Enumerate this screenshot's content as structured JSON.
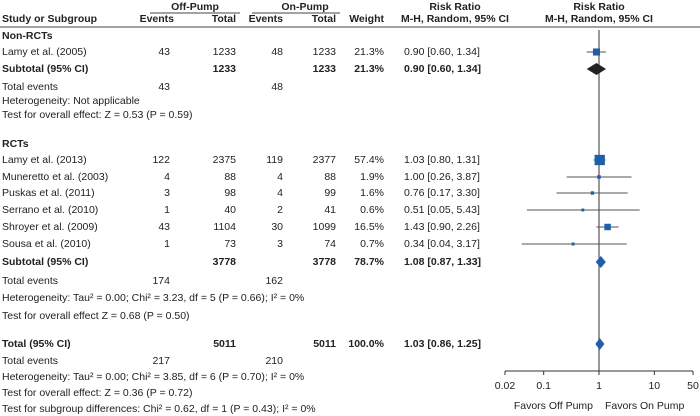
{
  "chart_data": {
    "type": "forest",
    "header": {
      "group1": "Off-Pump",
      "group2": "On-Pump",
      "rr_title": "Risk Ratio",
      "plot_title": "Risk Ratio",
      "study": "Study or Subgroup",
      "events1": "Events",
      "total1": "Total",
      "events2": "Events",
      "total2": "Total",
      "weight": "Weight",
      "rr_method": "M-H, Random, 95% CI",
      "plot_method": "M-H, Random, 95% CI"
    },
    "rows": [
      {
        "kind": "section",
        "label": "Non-RCTs"
      },
      {
        "kind": "study",
        "label": "Lamy  et al. (2005)",
        "e1": 43,
        "n1": 1233,
        "e2": 48,
        "n2": 1233,
        "weight": 21.3,
        "weight_label": "21.3%",
        "rr": 0.9,
        "lo": 0.6,
        "hi": 1.34,
        "effect_label": "0.90 [0.60, 1.34]"
      },
      {
        "kind": "subtotal",
        "label": "Subtotal (95% CI)",
        "n1": 1233,
        "n2": 1233,
        "weight": 21.3,
        "weight_label": "21.3%",
        "rr": 0.9,
        "lo": 0.6,
        "hi": 1.34,
        "effect_label": "0.90 [0.60, 1.34]",
        "color": "#222222"
      },
      {
        "kind": "events",
        "label": "Total events",
        "e1": 43,
        "e2": 48
      },
      {
        "kind": "note",
        "label": "Heterogeneity: Not applicable"
      },
      {
        "kind": "note",
        "label": "Test for overall effect: Z = 0.53 (P = 0.59)"
      },
      {
        "kind": "section",
        "label": "RCTs"
      },
      {
        "kind": "study",
        "label": "Lamy et al. (2013)",
        "e1": 122,
        "n1": 2375,
        "e2": 119,
        "n2": 2377,
        "weight": 57.4,
        "weight_label": "57.4%",
        "rr": 1.03,
        "lo": 0.8,
        "hi": 1.31,
        "effect_label": "1.03 [0.80, 1.31]"
      },
      {
        "kind": "study",
        "label": "Muneretto et al. (2003)",
        "e1": 4,
        "n1": 88,
        "e2": 4,
        "n2": 88,
        "weight": 1.9,
        "weight_label": "1.9%",
        "rr": 1.0,
        "lo": 0.26,
        "hi": 3.87,
        "effect_label": "1.00 [0.26, 3.87]"
      },
      {
        "kind": "study",
        "label": "Puskas et al. (2011)",
        "e1": 3,
        "n1": 98,
        "e2": 4,
        "n2": 99,
        "weight": 1.6,
        "weight_label": "1.6%",
        "rr": 0.76,
        "lo": 0.17,
        "hi": 3.3,
        "effect_label": "0.76 [0.17, 3.30]"
      },
      {
        "kind": "study",
        "label": "Serrano et al. (2010)",
        "e1": 1,
        "n1": 40,
        "e2": 2,
        "n2": 41,
        "weight": 0.6,
        "weight_label": "0.6%",
        "rr": 0.51,
        "lo": 0.05,
        "hi": 5.43,
        "effect_label": "0.51 [0.05, 5.43]"
      },
      {
        "kind": "study",
        "label": "Shroyer et al. (2009)",
        "e1": 43,
        "n1": 1104,
        "e2": 30,
        "n2": 1099,
        "weight": 16.5,
        "weight_label": "16.5%",
        "rr": 1.43,
        "lo": 0.9,
        "hi": 2.26,
        "effect_label": "1.43 [0.90, 2.26]"
      },
      {
        "kind": "study",
        "label": "Sousa et al. (2010)",
        "e1": 1,
        "n1": 73,
        "e2": 3,
        "n2": 74,
        "weight": 0.7,
        "weight_label": "0.7%",
        "rr": 0.34,
        "lo": 0.04,
        "hi": 3.17,
        "effect_label": "0.34 [0.04, 3.17]"
      },
      {
        "kind": "subtotal",
        "label": "Subtotal (95% CI)",
        "n1": 3778,
        "n2": 3778,
        "weight": 78.7,
        "weight_label": "78.7%",
        "rr": 1.08,
        "lo": 0.87,
        "hi": 1.33,
        "effect_label": "1.08 [0.87, 1.33]",
        "color": "#1f5fa8"
      },
      {
        "kind": "events",
        "label": "Total events",
        "e1": 174,
        "e2": 162
      },
      {
        "kind": "note",
        "label": "Heterogeneity: Tau² = 0.00; Chi² = 3.23, df = 5 (P = 0.66); I² = 0%"
      },
      {
        "kind": "note",
        "label": "Test for overall effect Z = 0.68 (P = 0.50)"
      },
      {
        "kind": "subtotal",
        "label": "Total (95% CI)",
        "n1": 5011,
        "n2": 5011,
        "weight": 100,
        "weight_label": "100.0%",
        "rr": 1.03,
        "lo": 0.86,
        "hi": 1.25,
        "effect_label": "1.03 [0.86, 1.25]",
        "color": "#1f5fa8"
      },
      {
        "kind": "events",
        "label": "Total events",
        "e1": 217,
        "e2": 210
      },
      {
        "kind": "note",
        "label": "Heterogeneity: Tau² = 0.00; Chi² = 3.85, df = 6 (P = 0.70); I² = 0%"
      },
      {
        "kind": "note",
        "label": "Test for overall effect: Z = 0.36 (P = 0.72)"
      },
      {
        "kind": "note",
        "label": "Test for subgroup differences: Chi² = 0.62, df = 1 (P = 0.43); I² = 0%"
      }
    ],
    "log_scale": true,
    "xlim": [
      0.02,
      50
    ],
    "xticks": [
      0.02,
      0.1,
      1,
      10,
      50
    ],
    "xlabel_left": "Favors Off Pump",
    "xlabel_right": "Favors On Pump",
    "square_color": "#1f5fa8"
  }
}
